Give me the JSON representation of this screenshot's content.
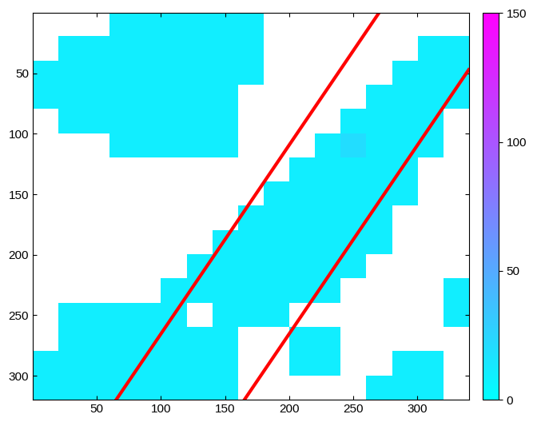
{
  "chart_data": {
    "type": "heatmap",
    "xlim": [
      0,
      340
    ],
    "ylim": [
      320,
      0
    ],
    "xticks": [
      50,
      100,
      150,
      200,
      250,
      300
    ],
    "yticks": [
      50,
      100,
      150,
      200,
      250,
      300
    ],
    "color_range": [
      0,
      150
    ],
    "color_ticks": [
      0,
      50,
      100,
      150
    ],
    "cells": [
      [
        0,
        0,
        0,
        10,
        10,
        10,
        10,
        10,
        10,
        0,
        0,
        0,
        0,
        0,
        0,
        0,
        0
      ],
      [
        0,
        10,
        10,
        10,
        10,
        10,
        10,
        10,
        10,
        0,
        0,
        0,
        0,
        0,
        0,
        10,
        10
      ],
      [
        10,
        10,
        10,
        10,
        10,
        10,
        10,
        10,
        10,
        0,
        0,
        0,
        0,
        0,
        10,
        10,
        10
      ],
      [
        10,
        10,
        10,
        10,
        10,
        10,
        10,
        10,
        0,
        0,
        0,
        0,
        0,
        10,
        10,
        10,
        10
      ],
      [
        0,
        10,
        10,
        10,
        10,
        10,
        10,
        10,
        0,
        0,
        0,
        0,
        10,
        10,
        10,
        10,
        0
      ],
      [
        0,
        0,
        0,
        10,
        10,
        10,
        10,
        10,
        0,
        0,
        0,
        10,
        20,
        10,
        10,
        10,
        0
      ],
      [
        0,
        0,
        0,
        0,
        0,
        0,
        0,
        0,
        0,
        0,
        10,
        10,
        10,
        10,
        10,
        0,
        0
      ],
      [
        0,
        0,
        0,
        0,
        0,
        0,
        0,
        0,
        0,
        10,
        10,
        10,
        10,
        10,
        10,
        0,
        0
      ],
      [
        0,
        0,
        0,
        0,
        0,
        0,
        0,
        0,
        10,
        10,
        10,
        10,
        10,
        10,
        0,
        0,
        0
      ],
      [
        0,
        0,
        0,
        0,
        0,
        0,
        0,
        10,
        10,
        10,
        10,
        10,
        10,
        10,
        0,
        0,
        0
      ],
      [
        0,
        0,
        0,
        0,
        0,
        0,
        10,
        10,
        10,
        10,
        10,
        10,
        10,
        0,
        0,
        0,
        0
      ],
      [
        0,
        0,
        0,
        0,
        0,
        10,
        10,
        10,
        10,
        10,
        10,
        10,
        0,
        0,
        0,
        0,
        10
      ],
      [
        0,
        10,
        10,
        10,
        10,
        10,
        0,
        10,
        10,
        10,
        0,
        0,
        0,
        0,
        0,
        0,
        10
      ],
      [
        0,
        10,
        10,
        10,
        10,
        10,
        10,
        10,
        0,
        0,
        10,
        10,
        0,
        0,
        0,
        0,
        0
      ],
      [
        10,
        10,
        10,
        10,
        10,
        10,
        10,
        10,
        0,
        0,
        10,
        10,
        0,
        0,
        10,
        10,
        0
      ],
      [
        10,
        10,
        10,
        10,
        10,
        10,
        10,
        10,
        0,
        0,
        0,
        0,
        0,
        10,
        10,
        10,
        0
      ]
    ],
    "lines": [
      {
        "x": [
          65,
          270
        ],
        "y": [
          320,
          0
        ],
        "color": "#ff0000"
      },
      {
        "x": [
          165,
          340
        ],
        "y": [
          320,
          47
        ],
        "color": "#ff0000"
      }
    ]
  }
}
